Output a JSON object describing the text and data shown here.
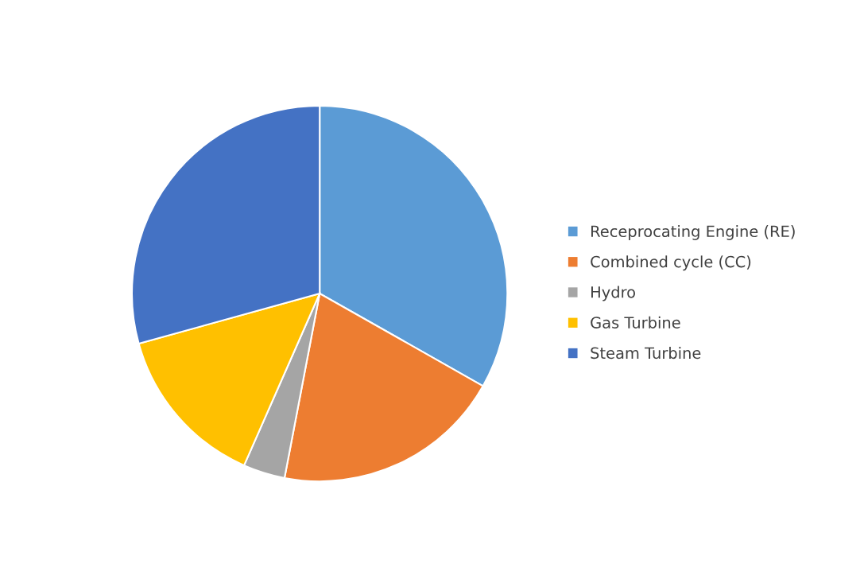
{
  "chart_data": {
    "type": "pie",
    "categories": [
      "Receprocating Engine (RE)",
      "Combined cycle (CC)",
      "Hydro",
      "Gas Turbine",
      "Steam Turbine"
    ],
    "values": [
      33.2,
      19.8,
      3.6,
      14.1,
      29.3
    ],
    "colors": [
      "#5b9bd5",
      "#ed7d31",
      "#a5a5a5",
      "#ffc000",
      "#4472c4"
    ],
    "legend": "right"
  }
}
